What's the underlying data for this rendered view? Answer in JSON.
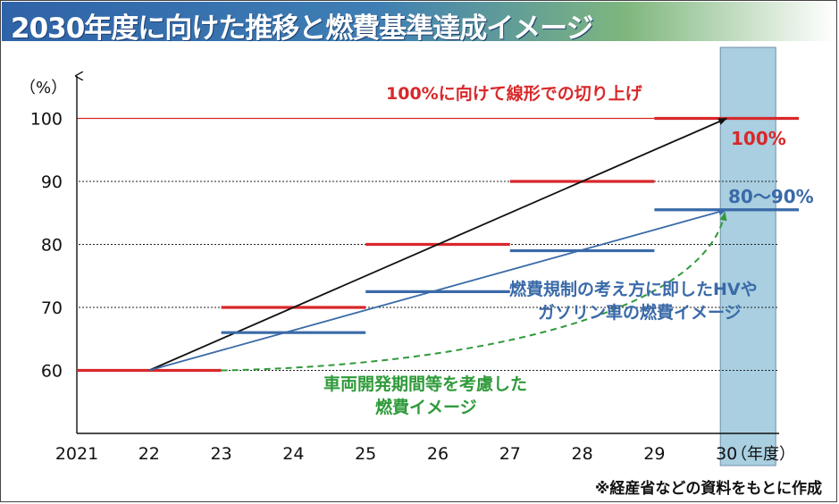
{
  "title": "2030年度に向けた推移と燃費基準達成イメージ",
  "source_note": "※経産省などの資料をもとに作成",
  "colors": {
    "red": "#d8282a",
    "blue": "#3a6aa8",
    "green": "#2f9a3a",
    "black": "#111111",
    "highlight": "#a9cfe0"
  },
  "chart_data": {
    "type": "line",
    "title": "2030年度に向けた推移と燃費基準達成イメージ",
    "ylabel": "（%）",
    "xlabel": "（年度）",
    "ylim": [
      50,
      110
    ],
    "yticks": [
      60,
      70,
      80,
      90,
      100
    ],
    "x_categories": [
      "2021",
      "22",
      "23",
      "24",
      "25",
      "26",
      "27",
      "28",
      "29",
      "30"
    ],
    "highlight_category": "30",
    "reference_line": {
      "value": 100
    },
    "series": [
      {
        "name": "100%に向けて線形での切り上げ",
        "color": "red",
        "style": "step",
        "steps": [
          {
            "from": "2021",
            "to": "23",
            "value": 60
          },
          {
            "from": "23",
            "to": "25",
            "value": 70
          },
          {
            "from": "25",
            "to": "27",
            "value": 80
          },
          {
            "from": "27",
            "to": "29",
            "value": 90
          },
          {
            "from": "29",
            "to": "31",
            "value": 100
          }
        ]
      },
      {
        "name": "100%に向けて線形での切り上げ（線形）",
        "color": "black",
        "style": "arrow",
        "points": [
          {
            "x": "22",
            "value": 60
          },
          {
            "x": "30",
            "value": 100
          }
        ]
      },
      {
        "name": "燃費規制の考え方に即したHVやガソリン車の燃費イメージ",
        "color": "blue",
        "style": "step",
        "steps": [
          {
            "from": "23",
            "to": "25",
            "value": 66
          },
          {
            "from": "25",
            "to": "27",
            "value": 72.5
          },
          {
            "from": "27",
            "to": "29",
            "value": 79
          },
          {
            "from": "29",
            "to": "31",
            "value": 85.5
          }
        ]
      },
      {
        "name": "燃費規制の考え方に即したHVやガソリン車の燃費イメージ（線形）",
        "color": "blue",
        "style": "arrow",
        "points": [
          {
            "x": "22",
            "value": 60
          },
          {
            "x": "30",
            "value": 85.5
          }
        ]
      },
      {
        "name": "車両開発期間等を考慮した燃費イメージ",
        "color": "green",
        "style": "dashed-curve",
        "points": [
          {
            "x": "23",
            "value": 60
          },
          {
            "x": "30",
            "value": 85.5
          }
        ]
      }
    ],
    "annotations": [
      {
        "id": "red_note",
        "text": "100%に向けて線形での切り上げ",
        "color": "red"
      },
      {
        "id": "red_value",
        "text": "100%",
        "color": "red"
      },
      {
        "id": "blue_value",
        "text": "80〜90%",
        "color": "blue"
      },
      {
        "id": "blue_note_1",
        "text": "燃費規制の考え方に即したHVや",
        "color": "blue"
      },
      {
        "id": "blue_note_2",
        "text": "ガソリン車の燃費イメージ",
        "color": "blue"
      },
      {
        "id": "green_note_1",
        "text": "車両開発期間等を考慮した",
        "color": "green"
      },
      {
        "id": "green_note_2",
        "text": "燃費イメージ",
        "color": "green"
      }
    ]
  }
}
